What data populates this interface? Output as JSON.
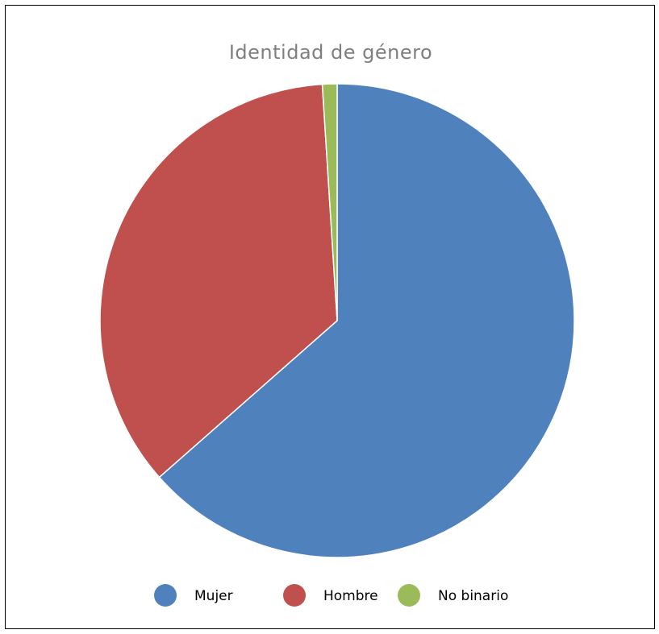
{
  "chart_data": {
    "type": "pie",
    "title": "Identidad de género",
    "categories": [
      "Mujer",
      "Hombre",
      "No binario"
    ],
    "values": [
      63.5,
      35.5,
      1.0
    ],
    "colors": [
      "#4f81bd",
      "#c0504d",
      "#9bbb59"
    ],
    "legend_position": "bottom",
    "start_angle_deg": 0,
    "direction": "clockwise"
  }
}
